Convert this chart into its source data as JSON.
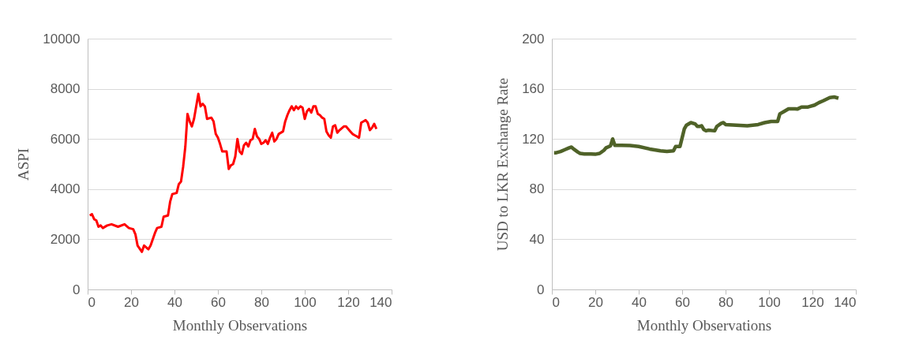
{
  "chart_data": [
    {
      "type": "line",
      "xlabel": "Monthly Observations",
      "ylabel": "ASPI",
      "xlim": [
        0,
        140
      ],
      "xticks": [
        0,
        20,
        40,
        60,
        80,
        100,
        120,
        140
      ],
      "ylim": [
        0,
        10000
      ],
      "yticks": [
        0,
        2000,
        4000,
        6000,
        8000,
        10000
      ],
      "grid": "y",
      "marker": "none",
      "line_style": "solid",
      "x": [
        1,
        2,
        3,
        4,
        5,
        6,
        7,
        9,
        11,
        14,
        17,
        19,
        21,
        22,
        23,
        25,
        26,
        28,
        29,
        31,
        32,
        34,
        35,
        37,
        38,
        39,
        41,
        42,
        43,
        44,
        45,
        46,
        47,
        48,
        49,
        51,
        52,
        53,
        54,
        55,
        57,
        58,
        59,
        60,
        61,
        62,
        64,
        65,
        66,
        67,
        68,
        69,
        70,
        71,
        72,
        73,
        74,
        75,
        76,
        77,
        78,
        79,
        80,
        81,
        82,
        83,
        84,
        85,
        86,
        87,
        88,
        90,
        91,
        92,
        93,
        94,
        95,
        96,
        97,
        98,
        99,
        100,
        101,
        102,
        103,
        104,
        105,
        106,
        107,
        108,
        109,
        110,
        111,
        112,
        113,
        114,
        115,
        116,
        118,
        119,
        121,
        122,
        123,
        124,
        125,
        126,
        127,
        128,
        129,
        130,
        131,
        132,
        133
      ],
      "series": [
        {
          "color": "#ff0000",
          "values": [
            2950,
            3000,
            2800,
            2750,
            2500,
            2550,
            2450,
            2550,
            2600,
            2500,
            2600,
            2450,
            2400,
            2200,
            1750,
            1500,
            1750,
            1600,
            1750,
            2250,
            2450,
            2500,
            2900,
            2950,
            3500,
            3800,
            3850,
            4200,
            4300,
            4900,
            5700,
            7000,
            6700,
            6500,
            6800,
            7800,
            7300,
            7400,
            7300,
            6800,
            6850,
            6700,
            6200,
            6050,
            5800,
            5500,
            5500,
            4800,
            4950,
            5000,
            5300,
            6000,
            5500,
            5400,
            5750,
            5850,
            5700,
            5950,
            6000,
            6400,
            6100,
            6000,
            5800,
            5850,
            5950,
            5800,
            6050,
            6250,
            5900,
            6000,
            6200,
            6300,
            6700,
            6950,
            7150,
            7300,
            7150,
            7300,
            7200,
            7300,
            7250,
            6800,
            7100,
            7200,
            7050,
            7300,
            7300,
            7000,
            6950,
            6850,
            6800,
            6300,
            6150,
            6050,
            6500,
            6550,
            6250,
            6350,
            6500,
            6500,
            6300,
            6200,
            6150,
            6100,
            6050,
            6650,
            6700,
            6750,
            6650,
            6350,
            6450,
            6600,
            6400
          ]
        }
      ]
    },
    {
      "type": "line",
      "xlabel": "Monthly Observations",
      "ylabel": "USD to LKR Exchange Rate",
      "xlim": [
        0,
        140
      ],
      "xticks": [
        0,
        20,
        40,
        60,
        80,
        100,
        120,
        140
      ],
      "ylim": [
        0,
        200
      ],
      "yticks": [
        0,
        40,
        80,
        120,
        160,
        200
      ],
      "grid": "y",
      "marker": "none",
      "line_style": "solid",
      "x": [
        1,
        2,
        4,
        6,
        8,
        9,
        10,
        12,
        13,
        15,
        18,
        20,
        22,
        24,
        25,
        27,
        28,
        29,
        32,
        36,
        40,
        45,
        50,
        53,
        56,
        57,
        59,
        60,
        61,
        62,
        64,
        66,
        67,
        68,
        69,
        70,
        71,
        72,
        75,
        76,
        78,
        79,
        80,
        85,
        90,
        95,
        98,
        101,
        104,
        105,
        107,
        109,
        112,
        113,
        115,
        118,
        121,
        123,
        125,
        128,
        130,
        131,
        132
      ],
      "series": [
        {
          "color": "#4f6228",
          "values": [
            109,
            109,
            110,
            111.5,
            113,
            113.5,
            112,
            109.5,
            108.5,
            108,
            108,
            107.8,
            108.5,
            111,
            113,
            114.5,
            120,
            115,
            115,
            114.8,
            114,
            112,
            110.5,
            110,
            110.5,
            114,
            114,
            121,
            128,
            131,
            133,
            132,
            130,
            130,
            130.5,
            127.5,
            126.5,
            127,
            126.5,
            130,
            132.5,
            133,
            131.5,
            131,
            130.5,
            131.5,
            133,
            134,
            134,
            140,
            142,
            144,
            144,
            143.8,
            145.5,
            145.5,
            147,
            149,
            150.5,
            153,
            153.5,
            153,
            152.5
          ]
        }
      ]
    }
  ]
}
